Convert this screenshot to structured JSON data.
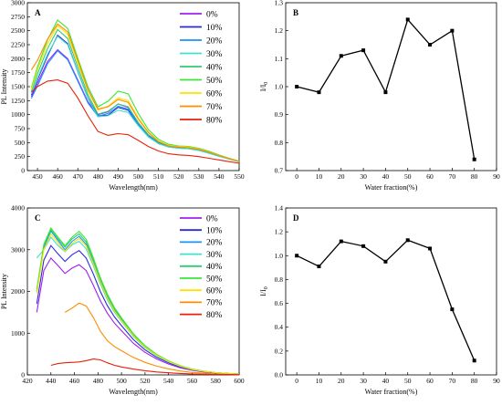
{
  "colors": [
    "#a020f0",
    "#2b2bd4",
    "#1e90ff",
    "#40e0d0",
    "#2ecc71",
    "#39e639",
    "#ffe000",
    "#ff8c00",
    "#e8200a"
  ],
  "legend_labels": [
    "0%",
    "10%",
    "20%",
    "30%",
    "40%",
    "50%",
    "60%",
    "70%",
    "80%"
  ],
  "chart_data": [
    {
      "panel": "A",
      "type": "line",
      "xlabel": "Wavelength(nm)",
      "ylabel": "PL Intensity",
      "xlim": [
        445,
        550
      ],
      "ylim": [
        0,
        3000
      ],
      "xticks": [
        450,
        460,
        470,
        480,
        490,
        500,
        510,
        520,
        530,
        540,
        550
      ],
      "yticks": [
        0,
        250,
        500,
        750,
        1000,
        1250,
        1500,
        1750,
        2000,
        2250,
        2500,
        2750,
        3000
      ],
      "grid": false,
      "legend": "top-right",
      "x": [
        447,
        450,
        455,
        460,
        465,
        470,
        475,
        480,
        485,
        490,
        495,
        500,
        505,
        510,
        515,
        520,
        525,
        530,
        535,
        540,
        545,
        550
      ],
      "series": [
        {
          "name": "0%",
          "values": [
            1320,
            1560,
            1950,
            2160,
            2000,
            1620,
            1230,
            1000,
            1050,
            1190,
            1130,
            850,
            630,
            500,
            430,
            410,
            400,
            370,
            320,
            260,
            210,
            160
          ]
        },
        {
          "name": "10%",
          "values": [
            1350,
            1620,
            2050,
            2420,
            2270,
            1770,
            1300,
            980,
            990,
            1130,
            1080,
            820,
            610,
            490,
            430,
            410,
            400,
            370,
            320,
            260,
            210,
            160
          ]
        },
        {
          "name": "20%",
          "values": [
            1290,
            1510,
            1910,
            2140,
            1980,
            1600,
            1210,
            970,
            1020,
            1150,
            1100,
            830,
            610,
            490,
            420,
            400,
            390,
            360,
            310,
            255,
            205,
            160
          ]
        },
        {
          "name": "30%",
          "values": [
            1370,
            1650,
            2080,
            2400,
            2250,
            1760,
            1290,
            960,
            980,
            1080,
            1040,
            800,
            600,
            480,
            420,
            400,
            390,
            360,
            310,
            255,
            205,
            160
          ]
        },
        {
          "name": "40%",
          "values": [
            1410,
            1730,
            2180,
            2520,
            2360,
            1850,
            1360,
            1010,
            1060,
            1190,
            1140,
            860,
            640,
            510,
            440,
            420,
            410,
            380,
            330,
            270,
            215,
            165
          ]
        },
        {
          "name": "50%",
          "values": [
            1480,
            1850,
            2340,
            2690,
            2540,
            2010,
            1500,
            1140,
            1240,
            1420,
            1370,
            1020,
            730,
            560,
            470,
            440,
            430,
            400,
            345,
            280,
            220,
            170
          ]
        },
        {
          "name": "60%",
          "values": [
            1450,
            1800,
            2270,
            2590,
            2440,
            1920,
            1430,
            1080,
            1150,
            1300,
            1250,
            940,
            690,
            530,
            450,
            430,
            420,
            390,
            335,
            275,
            215,
            165
          ]
        },
        {
          "name": "70%",
          "values": [
            1800,
            1970,
            2350,
            2620,
            2480,
            1970,
            1450,
            1100,
            1140,
            1270,
            1220,
            920,
            680,
            520,
            440,
            420,
            410,
            380,
            330,
            270,
            215,
            165
          ]
        },
        {
          "name": "80%",
          "values": [
            1400,
            1500,
            1600,
            1620,
            1560,
            1300,
            980,
            700,
            630,
            660,
            640,
            540,
            430,
            350,
            300,
            280,
            270,
            250,
            220,
            190,
            160,
            130
          ]
        }
      ]
    },
    {
      "panel": "B",
      "type": "line",
      "xlabel": "Water fraction(%)",
      "ylabel": "I/I",
      "ylabel_sub": "0",
      "xlim": [
        -5,
        90
      ],
      "ylim": [
        0.7,
        1.3
      ],
      "xticks": [
        0,
        10,
        20,
        30,
        40,
        50,
        60,
        70,
        80,
        90
      ],
      "yticks": [
        0.7,
        0.8,
        0.9,
        1.0,
        1.1,
        1.2,
        1.3
      ],
      "ytick_labels": [
        "0.7",
        "0.8",
        "0.9",
        "1.0",
        "1.1",
        "1.2",
        "1.3"
      ],
      "grid": false,
      "x": [
        0,
        10,
        20,
        30,
        40,
        50,
        60,
        70,
        80
      ],
      "values": [
        1.0,
        0.98,
        1.11,
        1.13,
        0.98,
        1.24,
        1.15,
        1.2,
        0.74
      ]
    },
    {
      "panel": "C",
      "type": "line",
      "xlabel": "Wavelength(nm)",
      "ylabel": "PL Intensity",
      "xlim": [
        420,
        600
      ],
      "ylim": [
        0,
        4000
      ],
      "xticks": [
        420,
        440,
        460,
        480,
        500,
        520,
        540,
        560,
        580,
        600
      ],
      "yticks": [
        0,
        1000,
        2000,
        3000,
        4000
      ],
      "grid": false,
      "legend": "top-right",
      "x": [
        428,
        434,
        440,
        446,
        452,
        458,
        464,
        470,
        476,
        482,
        488,
        494,
        500,
        510,
        520,
        530,
        540,
        550,
        560,
        570,
        580,
        590,
        600
      ],
      "series": [
        {
          "name": "0%",
          "values": [
            1500,
            2500,
            2800,
            2620,
            2430,
            2560,
            2640,
            2500,
            2150,
            1780,
            1480,
            1240,
            1060,
            760,
            540,
            380,
            260,
            170,
            110,
            70,
            45,
            30,
            20
          ]
        },
        {
          "name": "10%",
          "values": [
            1700,
            2750,
            3100,
            2900,
            2720,
            2880,
            2980,
            2800,
            2420,
            2000,
            1660,
            1390,
            1180,
            850,
            600,
            420,
            290,
            190,
            120,
            80,
            50,
            35,
            20
          ]
        },
        {
          "name": "20%",
          "values": [
            2000,
            3050,
            3450,
            3220,
            3000,
            3200,
            3320,
            3130,
            2700,
            2240,
            1860,
            1550,
            1320,
            950,
            670,
            470,
            320,
            210,
            130,
            85,
            55,
            35,
            20
          ]
        },
        {
          "name": "30%",
          "values": [
            2800,
            3000,
            3300,
            3100,
            2950,
            3120,
            3200,
            3020,
            2620,
            2180,
            1800,
            1500,
            1280,
            920,
            650,
            455,
            310,
            205,
            130,
            85,
            55,
            35,
            20
          ]
        },
        {
          "name": "40%",
          "values": [
            2000,
            3100,
            3480,
            3260,
            3060,
            3260,
            3380,
            3190,
            2760,
            2290,
            1900,
            1580,
            1350,
            970,
            690,
            480,
            330,
            215,
            135,
            90,
            55,
            35,
            20
          ]
        },
        {
          "name": "50%",
          "values": [
            2050,
            3130,
            3520,
            3300,
            3100,
            3300,
            3440,
            3250,
            2810,
            2330,
            1940,
            1610,
            1370,
            990,
            700,
            490,
            335,
            220,
            140,
            90,
            55,
            35,
            20
          ]
        },
        {
          "name": "60%",
          "values": [
            1950,
            3000,
            3380,
            3160,
            2960,
            3150,
            3270,
            3090,
            2670,
            2220,
            1840,
            1530,
            1300,
            940,
            665,
            465,
            320,
            210,
            130,
            85,
            55,
            35,
            20
          ]
        },
        {
          "name": "70%",
          "values": [
            null,
            null,
            null,
            null,
            1500,
            1600,
            1720,
            1650,
            1380,
            1050,
            820,
            680,
            580,
            420,
            300,
            210,
            145,
            95,
            60,
            40,
            25,
            15,
            10
          ]
        },
        {
          "name": "80%",
          "values": [
            null,
            null,
            230,
            270,
            290,
            300,
            310,
            340,
            380,
            360,
            290,
            230,
            190,
            140,
            100,
            70,
            50,
            35,
            25,
            15,
            10,
            8,
            5
          ]
        }
      ]
    },
    {
      "panel": "D",
      "type": "line",
      "xlabel": "Water fraction(%)",
      "ylabel": "I/I",
      "ylabel_sub": "0",
      "xlim": [
        -5,
        90
      ],
      "ylim": [
        0.0,
        1.4
      ],
      "xticks": [
        0,
        10,
        20,
        30,
        40,
        50,
        60,
        70,
        80,
        90
      ],
      "yticks": [
        0.0,
        0.2,
        0.4,
        0.6,
        0.8,
        1.0,
        1.2,
        1.4
      ],
      "ytick_labels": [
        "0.0",
        "0.2",
        "0.4",
        "0.6",
        "0.8",
        "1.0",
        "1.2",
        "1.4"
      ],
      "grid": false,
      "x": [
        0,
        10,
        20,
        30,
        40,
        50,
        60,
        70,
        80
      ],
      "values": [
        1.0,
        0.91,
        1.12,
        1.08,
        0.95,
        1.13,
        1.06,
        0.55,
        0.12
      ]
    }
  ]
}
